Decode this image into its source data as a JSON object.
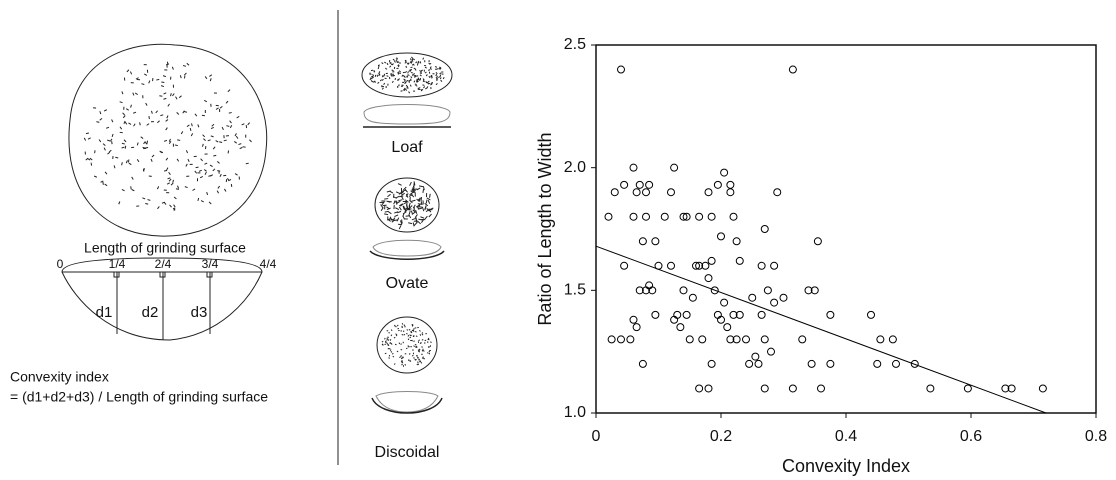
{
  "diagram": {
    "surface_label": "Length of grinding surface",
    "quarters": [
      "0",
      "1/4",
      "2/4",
      "3/4",
      "4/4"
    ],
    "depths": [
      "d1",
      "d2",
      "d3"
    ],
    "formula_title": "Convexity index",
    "formula": "= (d1+d2+d3) / Length of grinding surface",
    "shapes": [
      "Loaf",
      "Ovate",
      "Discoidal"
    ]
  },
  "chart_data": {
    "type": "scatter",
    "xlabel": "Convexity Index",
    "ylabel": "Ratio of Length to Width",
    "xlim": [
      0,
      0.8
    ],
    "ylim": [
      1,
      2.5
    ],
    "xticks": [
      0,
      0.2,
      0.4,
      0.6,
      0.8
    ],
    "yticks": [
      {
        "value": 1,
        "label": "1.0"
      },
      1.5,
      {
        "value": 2,
        "label": "2.0"
      },
      2.5
    ],
    "color": "#000000",
    "x": [
      0.04,
      0.315,
      0.02,
      0.03,
      0.045,
      0.06,
      0.07,
      0.065,
      0.08,
      0.085,
      0.06,
      0.08,
      0.075,
      0.095,
      0.11,
      0.12,
      0.125,
      0.14,
      0.145,
      0.165,
      0.185,
      0.18,
      0.195,
      0.205,
      0.215,
      0.215,
      0.22,
      0.2,
      0.225,
      0.23,
      0.265,
      0.27,
      0.285,
      0.29,
      0.025,
      0.04,
      0.045,
      0.055,
      0.06,
      0.065,
      0.07,
      0.075,
      0.08,
      0.085,
      0.09,
      0.095,
      0.1,
      0.12,
      0.125,
      0.13,
      0.135,
      0.14,
      0.145,
      0.15,
      0.155,
      0.16,
      0.165,
      0.17,
      0.175,
      0.18,
      0.185,
      0.19,
      0.195,
      0.2,
      0.205,
      0.21,
      0.215,
      0.22,
      0.225,
      0.23,
      0.24,
      0.245,
      0.25,
      0.255,
      0.26,
      0.265,
      0.27,
      0.275,
      0.28,
      0.285,
      0.18,
      0.185,
      0.165,
      0.27,
      0.3,
      0.315,
      0.33,
      0.34,
      0.35,
      0.345,
      0.355,
      0.36,
      0.375,
      0.375,
      0.44,
      0.45,
      0.455,
      0.475,
      0.48,
      0.51,
      0.535,
      0.595,
      0.655,
      0.665,
      0.715
    ],
    "values": [
      2.4,
      2.4,
      1.8,
      1.9,
      1.93,
      2.0,
      1.93,
      1.9,
      1.9,
      1.93,
      1.8,
      1.8,
      1.7,
      1.7,
      1.8,
      1.9,
      2.0,
      1.8,
      1.8,
      1.8,
      1.8,
      1.9,
      1.93,
      1.98,
      1.93,
      1.9,
      1.8,
      1.72,
      1.7,
      1.62,
      1.6,
      1.75,
      1.6,
      1.9,
      1.3,
      1.3,
      1.6,
      1.3,
      1.38,
      1.35,
      1.5,
      1.2,
      1.5,
      1.52,
      1.5,
      1.4,
      1.6,
      1.6,
      1.38,
      1.4,
      1.35,
      1.5,
      1.4,
      1.3,
      1.47,
      1.6,
      1.6,
      1.3,
      1.6,
      1.55,
      1.62,
      1.5,
      1.4,
      1.38,
      1.45,
      1.35,
      1.3,
      1.4,
      1.3,
      1.4,
      1.3,
      1.2,
      1.47,
      1.23,
      1.2,
      1.4,
      1.3,
      1.5,
      1.25,
      1.45,
      1.1,
      1.2,
      1.1,
      1.1,
      1.47,
      1.1,
      1.3,
      1.5,
      1.5,
      1.2,
      1.7,
      1.1,
      1.4,
      1.2,
      1.4,
      1.2,
      1.3,
      1.3,
      1.2,
      1.2,
      1.1,
      1.1,
      1.1,
      1.1,
      1.1
    ],
    "trendline": {
      "x": [
        0,
        0.72
      ],
      "y": [
        1.68,
        1.0
      ]
    }
  }
}
